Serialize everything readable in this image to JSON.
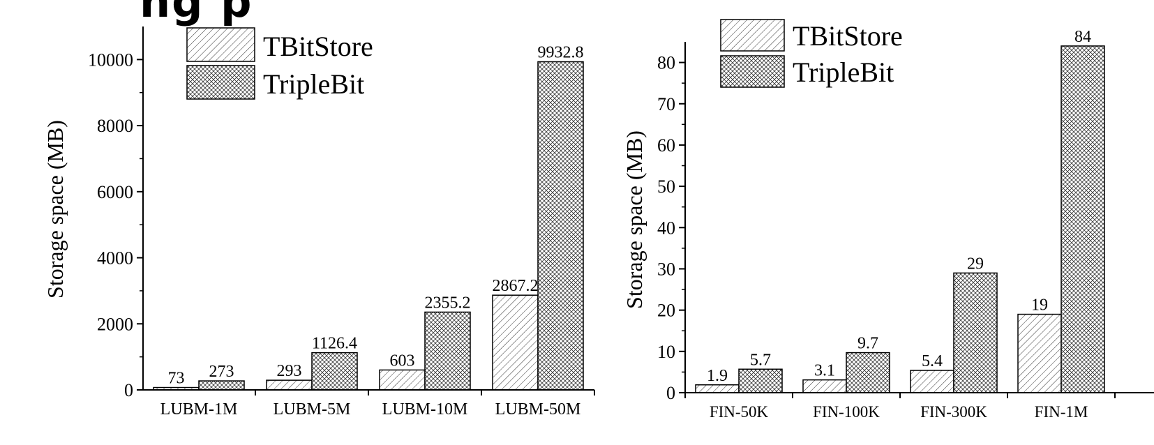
{
  "header_fragment": "ng p",
  "chart_data": [
    {
      "type": "bar",
      "ylabel": "Storage space (MB)",
      "xlabel": "",
      "ylim": [
        0,
        11000
      ],
      "yticks": [
        "0",
        "2000",
        "4000",
        "6000",
        "8000",
        "10000"
      ],
      "ytick_values": [
        0,
        2000,
        4000,
        6000,
        8000,
        10000
      ],
      "categories": [
        "LUBM-1M",
        "LUBM-5M",
        "LUBM-10M",
        "LUBM-50M"
      ],
      "series": [
        {
          "name": "TBitStore",
          "values": [
            73,
            293,
            603,
            2867.2
          ],
          "labels": [
            "73",
            "293",
            "603",
            "2867.2"
          ]
        },
        {
          "name": "TripleBit",
          "values": [
            273,
            1126.4,
            2355.2,
            9932.8
          ],
          "labels": [
            "273",
            "1126.4",
            "2355.2",
            "9932.8"
          ]
        }
      ],
      "legend_position": "top-left",
      "grid": false
    },
    {
      "type": "bar",
      "ylabel": "Storage space (MB)",
      "xlabel": "",
      "ylim": [
        0,
        85
      ],
      "yticks": [
        "0",
        "10",
        "20",
        "30",
        "40",
        "50",
        "60",
        "70",
        "80"
      ],
      "ytick_values": [
        0,
        10,
        20,
        30,
        40,
        50,
        60,
        70,
        80
      ],
      "categories": [
        "FIN-50K",
        "FIN-100K",
        "FIN-300K",
        "FIN-1M"
      ],
      "series": [
        {
          "name": "TBitStore",
          "values": [
            1.9,
            3.1,
            5.4,
            19
          ],
          "labels": [
            "1.9",
            "3.1",
            "5.4",
            "19"
          ]
        },
        {
          "name": "TripleBit",
          "values": [
            5.7,
            9.7,
            29,
            84
          ],
          "labels": [
            "5.7",
            "9.7",
            "29",
            "84"
          ]
        }
      ],
      "legend_position": "top-left",
      "grid": false
    }
  ]
}
